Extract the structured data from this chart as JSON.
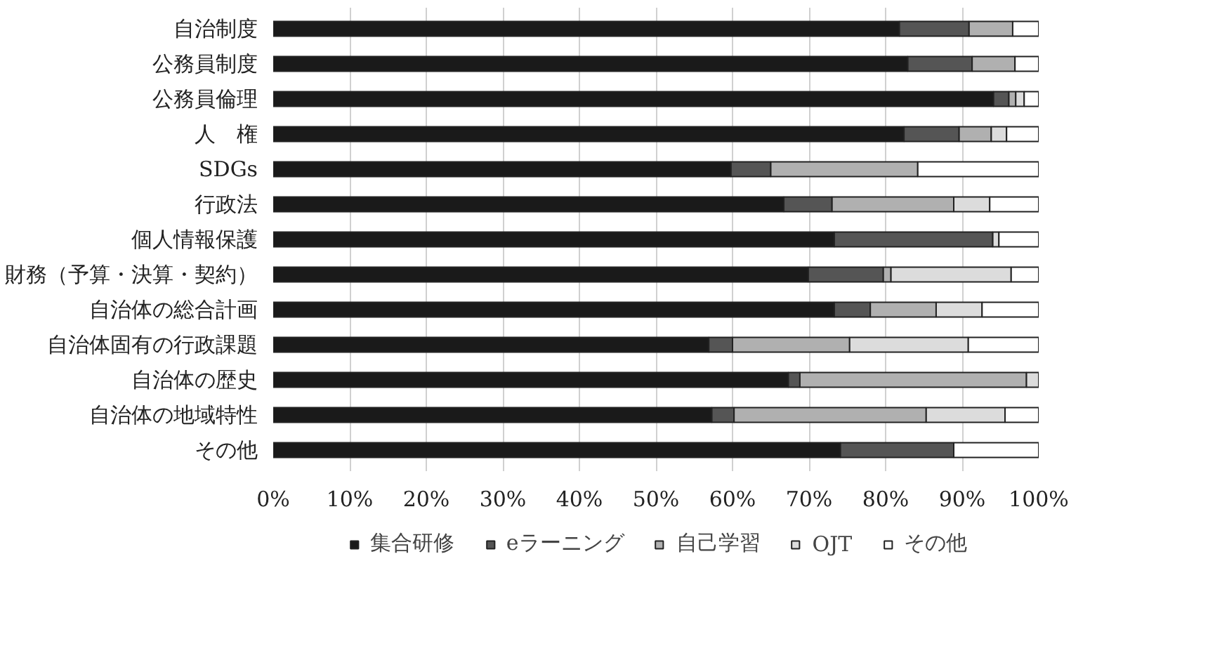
{
  "chart_data": {
    "type": "bar",
    "orientation": "horizontal",
    "stacked": true,
    "categories": [
      "自治制度",
      "公務員制度",
      "公務員倫理",
      "人　権",
      "SDGs",
      "行政法",
      "個人情報保護",
      "財務（予算・決算・契約）",
      "自治体の総合計画",
      "自治体固有の行政課題",
      "自治体の歴史",
      "自治体の地域特性",
      "その他"
    ],
    "series": [
      {
        "name": "集合研修",
        "color": "#1a1a1a",
        "values": [
          81.8,
          82.9,
          94.1,
          82.4,
          59.8,
          66.7,
          73.3,
          69.9,
          73.3,
          56.9,
          67.3,
          57.3,
          74.1
        ]
      },
      {
        "name": "eラーニング",
        "color": "#555555",
        "values": [
          9.1,
          8.4,
          2.0,
          7.2,
          5.2,
          6.3,
          20.7,
          9.8,
          4.7,
          3.1,
          1.5,
          2.9,
          14.8
        ]
      },
      {
        "name": "自己学習",
        "color": "#b0b0b0",
        "values": [
          5.7,
          5.6,
          0.9,
          4.2,
          19.2,
          15.9,
          0,
          1.0,
          8.6,
          15.3,
          29.6,
          25.1,
          0
        ]
      },
      {
        "name": "OJT",
        "color": "#dcdcdc",
        "values": [
          0,
          0,
          1.1,
          2.0,
          0,
          4.7,
          0.8,
          15.7,
          6.0,
          15.5,
          1.6,
          10.3,
          0
        ]
      },
      {
        "name": "その他",
        "color": "#ffffff",
        "values": [
          3.4,
          3.1,
          1.9,
          4.2,
          15.8,
          6.4,
          5.2,
          3.6,
          7.4,
          9.2,
          0,
          4.4,
          11.1
        ]
      }
    ],
    "xlim": [
      0,
      100
    ],
    "xticks": [
      {
        "value": 0,
        "label": "0%"
      },
      {
        "value": 10,
        "label": "10%"
      },
      {
        "value": 20,
        "label": "20%"
      },
      {
        "value": 30,
        "label": "30%"
      },
      {
        "value": 40,
        "label": "40%"
      },
      {
        "value": 50,
        "label": "50%"
      },
      {
        "value": 60,
        "label": "60%"
      },
      {
        "value": 70,
        "label": "70%"
      },
      {
        "value": 80,
        "label": "80%"
      },
      {
        "value": 90,
        "label": "90%"
      },
      {
        "value": 100,
        "label": "100%"
      }
    ],
    "grid": "x",
    "legend": "bottom"
  }
}
